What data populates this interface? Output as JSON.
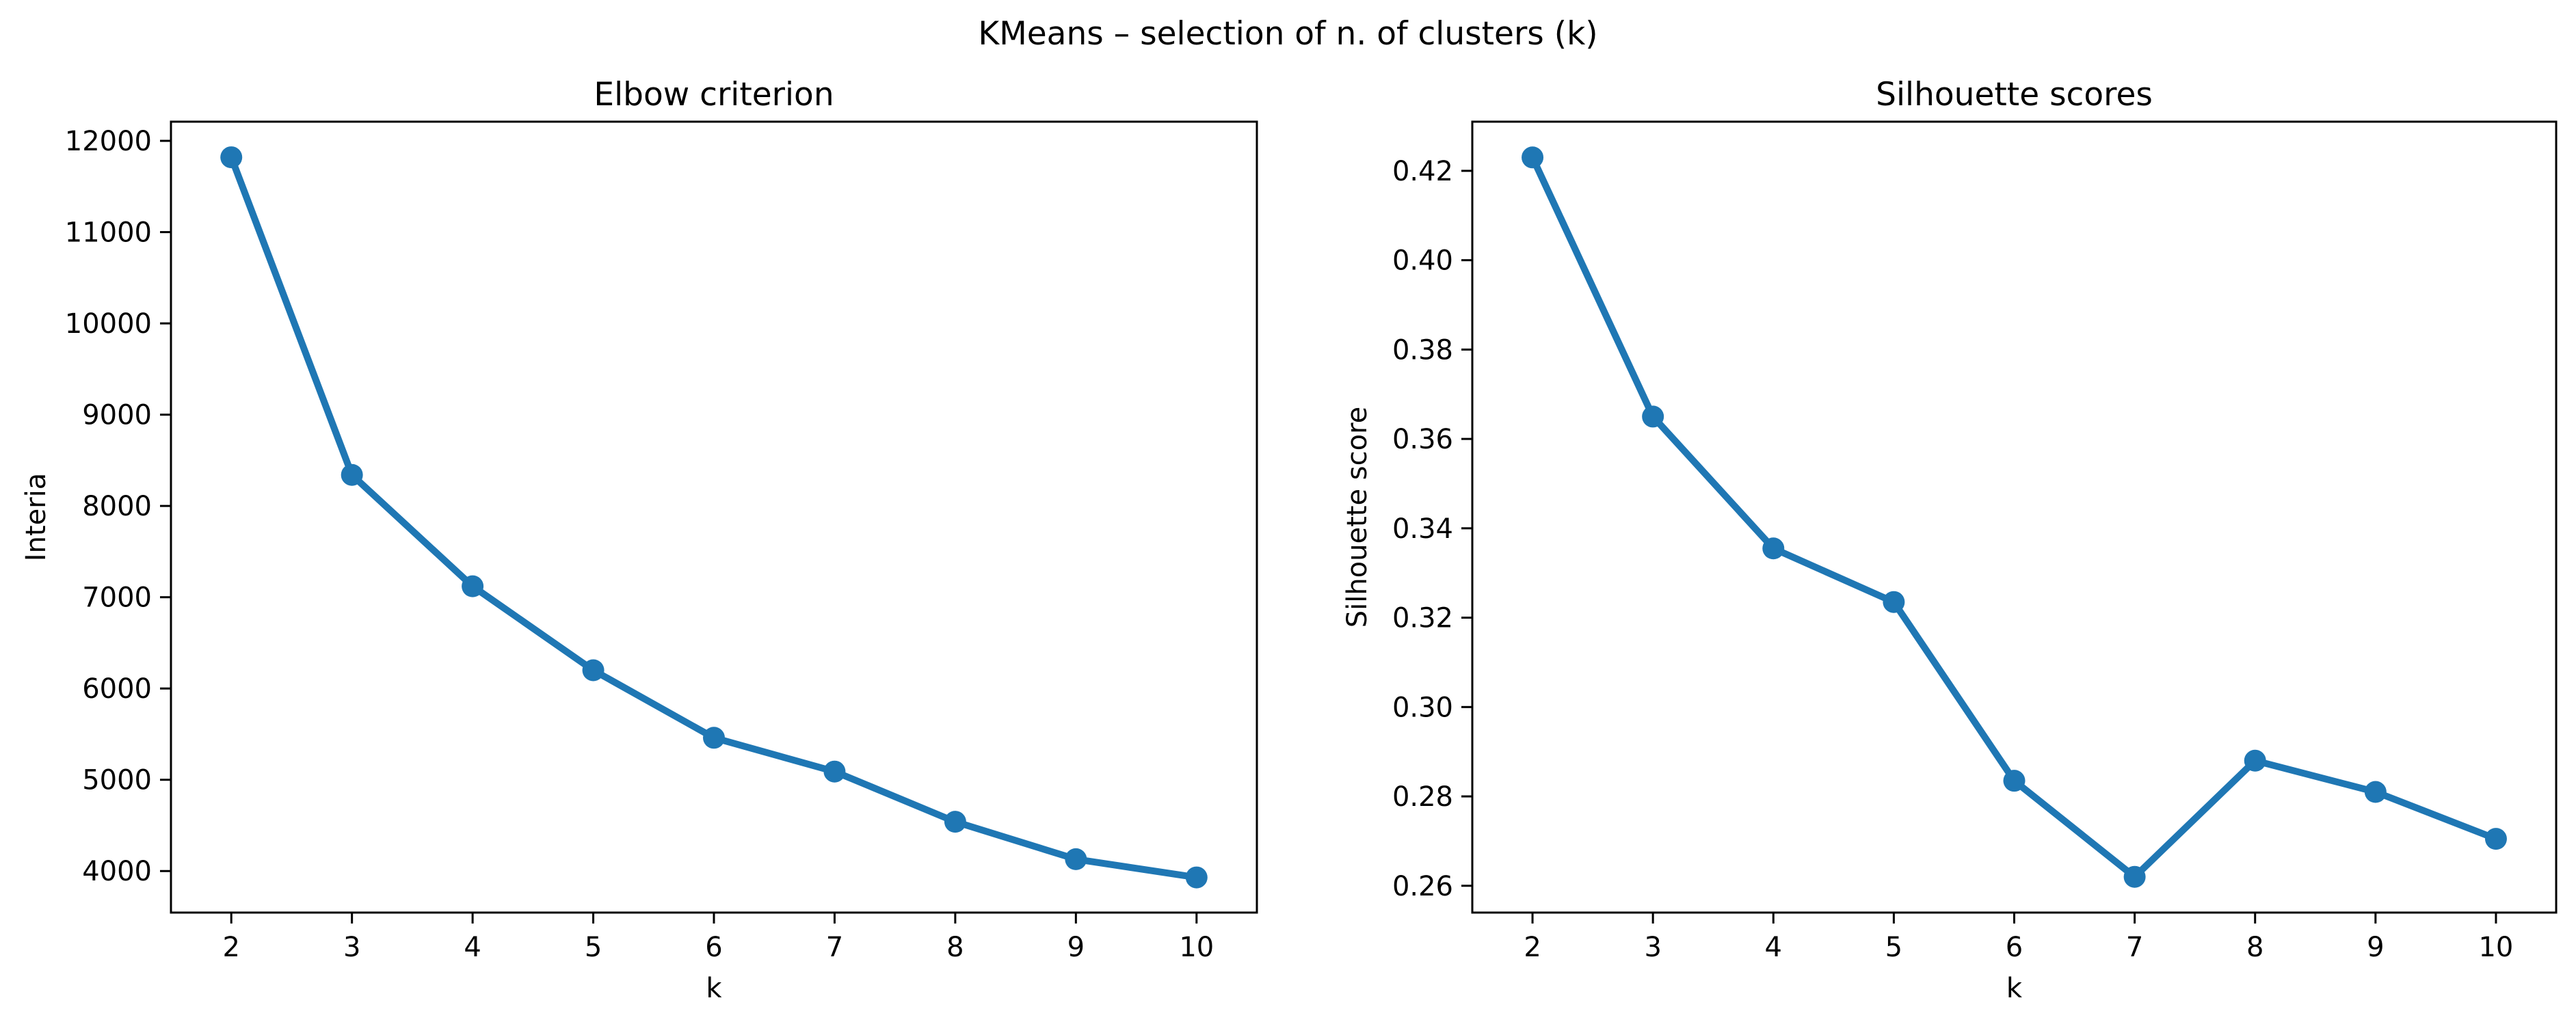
{
  "suptitle": "KMeans – selection of n. of clusters (k)",
  "colors": {
    "line": "#1f77b4",
    "axes": "#000000",
    "background": "#ffffff"
  },
  "chart_data": [
    {
      "type": "line",
      "title": "Elbow criterion",
      "xlabel": "k",
      "ylabel": "Interia",
      "x": [
        2,
        3,
        4,
        5,
        6,
        7,
        8,
        9,
        10
      ],
      "series": [
        {
          "values": [
            11820,
            8340,
            7120,
            6200,
            5460,
            5090,
            4540,
            4130,
            3930
          ]
        }
      ],
      "xticks": [
        2,
        3,
        4,
        5,
        6,
        7,
        8,
        9,
        10
      ],
      "yticks": [
        4000,
        5000,
        6000,
        7000,
        8000,
        9000,
        10000,
        11000,
        12000
      ],
      "xlim": [
        1.5,
        10.5
      ],
      "ylim": [
        3545,
        12210
      ],
      "grid": false,
      "marker": "circle"
    },
    {
      "type": "line",
      "title": "Silhouette scores",
      "xlabel": "k",
      "ylabel": "Silhouette score",
      "x": [
        2,
        3,
        4,
        5,
        6,
        7,
        8,
        9,
        10
      ],
      "series": [
        {
          "values": [
            0.423,
            0.365,
            0.3355,
            0.3235,
            0.2835,
            0.262,
            0.288,
            0.281,
            0.2705
          ]
        }
      ],
      "xticks": [
        2,
        3,
        4,
        5,
        6,
        7,
        8,
        9,
        10
      ],
      "yticks": [
        0.26,
        0.28,
        0.3,
        0.32,
        0.34,
        0.36,
        0.38,
        0.4,
        0.42
      ],
      "ytick_labels": [
        "0.26",
        "0.28",
        "0.30",
        "0.32",
        "0.34",
        "0.36",
        "0.38",
        "0.40",
        "0.42"
      ],
      "xlim": [
        1.5,
        10.5
      ],
      "ylim": [
        0.254,
        0.431
      ],
      "grid": false,
      "marker": "circle"
    }
  ]
}
